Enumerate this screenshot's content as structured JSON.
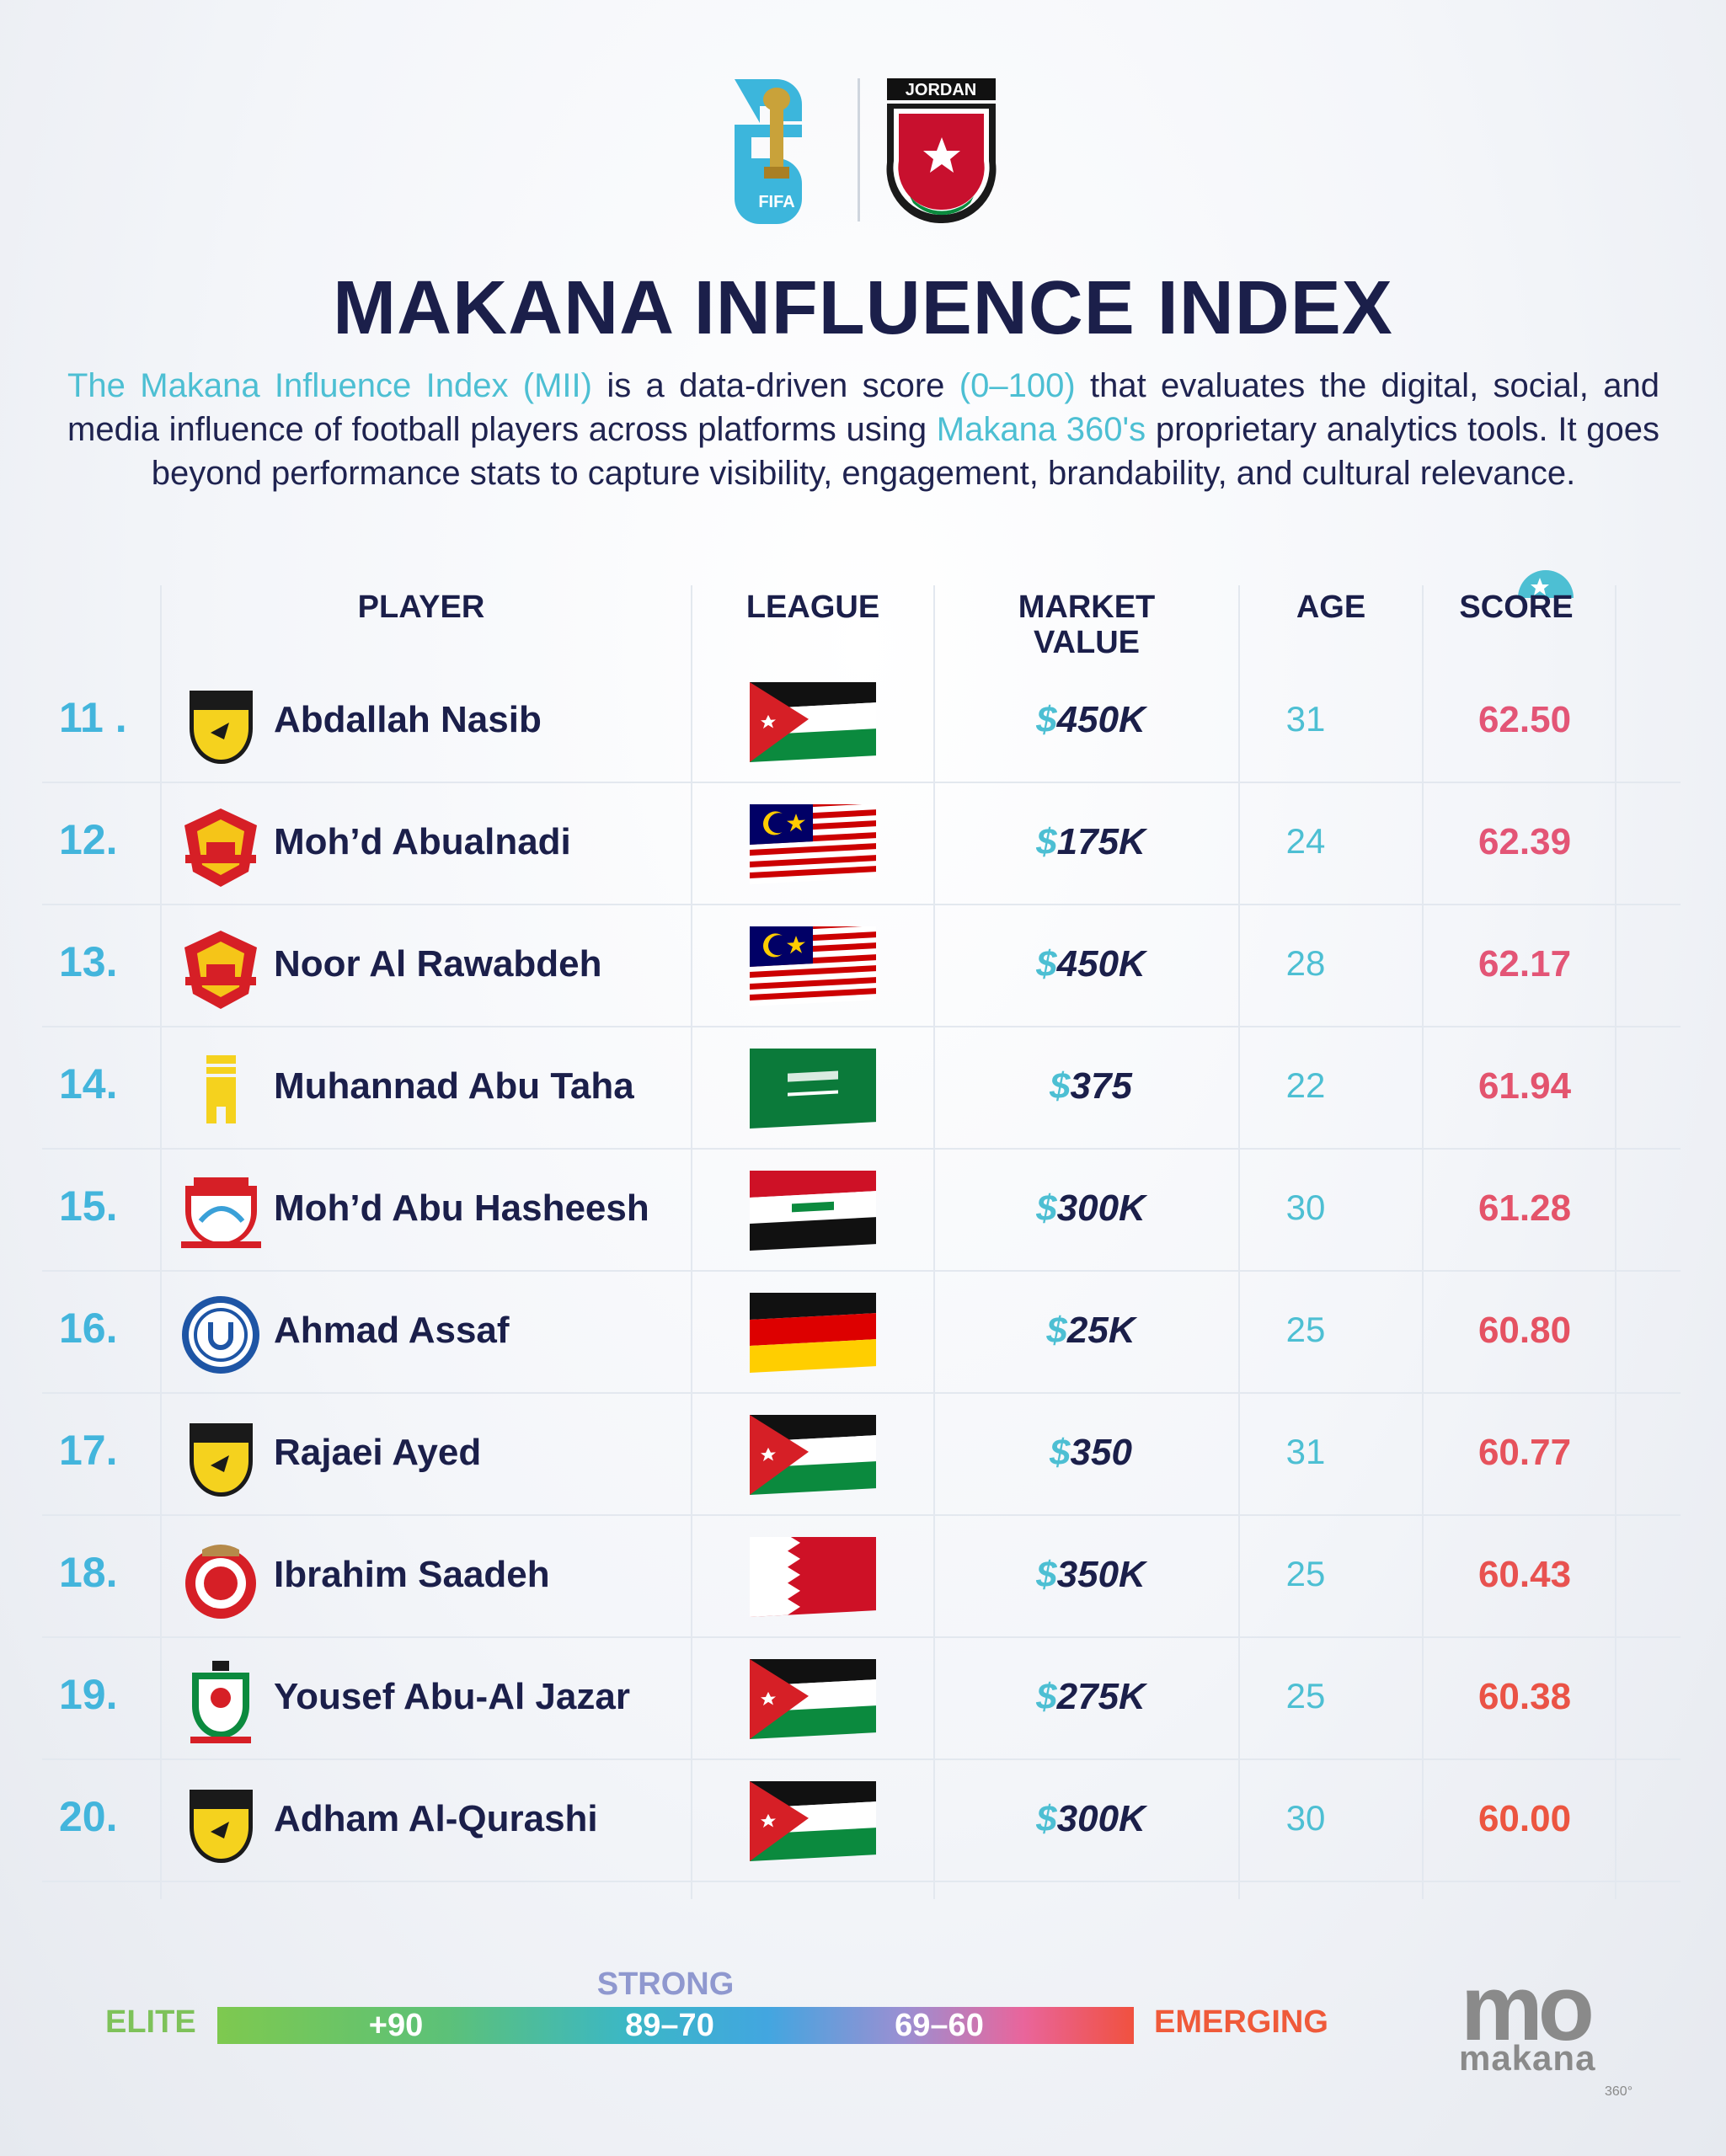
{
  "header": {
    "wc_logo_text": "FIFA",
    "badge_text": "JORDAN",
    "title": "MAKANA INFLUENCE INDEX",
    "description": [
      {
        "text": "The Makana Influence Index (MII)",
        "highlight": true
      },
      {
        "text": " is a data-driven score ",
        "highlight": false
      },
      {
        "text": "(0–100)",
        "highlight": true
      },
      {
        "text": " that evaluates the digital, social, and media influence of football players across platforms using ",
        "highlight": false
      },
      {
        "text": "Makana 360's",
        "highlight": true
      },
      {
        "text": " proprietary analytics tools. It goes beyond performance stats to capture visibility, engagement, brandability, and cultural relevance.",
        "highlight": false
      }
    ]
  },
  "table": {
    "columns": {
      "player": "PLAYER",
      "league": "LEAGUE",
      "market_value_line1": "MARKET",
      "market_value_line2": "VALUE",
      "age": "AGE",
      "score": "SCORE"
    },
    "rows": [
      {
        "rank": "11 .",
        "name": "Abdallah Nasib",
        "crest": "yellow-shield-crest",
        "flag": "jordan",
        "market_value": "450K",
        "age": "31",
        "score": "62.50",
        "score_color": "#e35576"
      },
      {
        "rank": "12.",
        "name": "Moh’d Abualnadi",
        "crest": "red-yellow-crest",
        "flag": "malaysia",
        "market_value": "175K",
        "age": "24",
        "score": "62.39",
        "score_color": "#e35576"
      },
      {
        "rank": "13.",
        "name": "Noor Al Rawabdeh",
        "crest": "red-yellow-crest",
        "flag": "malaysia",
        "market_value": "450K",
        "age": "28",
        "score": "62.17",
        "score_color": "#e35576"
      },
      {
        "rank": "14.",
        "name": "Muhannad Abu Taha",
        "crest": "yellow-tower-crest",
        "flag": "saudi-arabia",
        "market_value": "375",
        "age": "22",
        "score": "61.94",
        "score_color": "#e3546e"
      },
      {
        "rank": "15.",
        "name": "Moh’d Abu Hasheesh",
        "crest": "zakho-crest",
        "flag": "iraq",
        "market_value": "300K",
        "age": "30",
        "score": "61.28",
        "score_color": "#e4536a"
      },
      {
        "rank": "16.",
        "name": "Ahmad Assaf",
        "crest": "us-rumelange-crest",
        "flag": "germany",
        "market_value": "25K",
        "age": "25",
        "score": "60.80",
        "score_color": "#e55262"
      },
      {
        "rank": "17.",
        "name": "Rajaei Ayed",
        "crest": "yellow-shield-crest",
        "flag": "jordan",
        "market_value": "350",
        "age": "31",
        "score": "60.77",
        "score_color": "#e6525c"
      },
      {
        "rank": "18.",
        "name": "Ibrahim Saadeh",
        "crest": "red-round-crest",
        "flag": "bahrain",
        "market_value": "350K",
        "age": "25",
        "score": "60.43",
        "score_color": "#e85250"
      },
      {
        "rank": "19.",
        "name": "Yousef Abu-Al Jazar",
        "crest": "green-red-crest",
        "flag": "jordan",
        "market_value": "275K",
        "age": "25",
        "score": "60.38",
        "score_color": "#ea5346"
      },
      {
        "rank": "20.",
        "name": "Adham Al-Qurashi",
        "crest": "yellow-shield-crest",
        "flag": "jordan",
        "market_value": "300K",
        "age": "30",
        "score": "60.00",
        "score_color": "#ec5540"
      }
    ],
    "currency_symbol": "$"
  },
  "legend": {
    "strong_label": "STRONG",
    "elite_label": "ELITE",
    "segments": [
      "+90",
      "89–70",
      "69–60"
    ],
    "emerging_label": "EMERGING"
  },
  "brand": {
    "logo_mark": "mo",
    "wordmark": "makana",
    "suffix": "360°"
  }
}
